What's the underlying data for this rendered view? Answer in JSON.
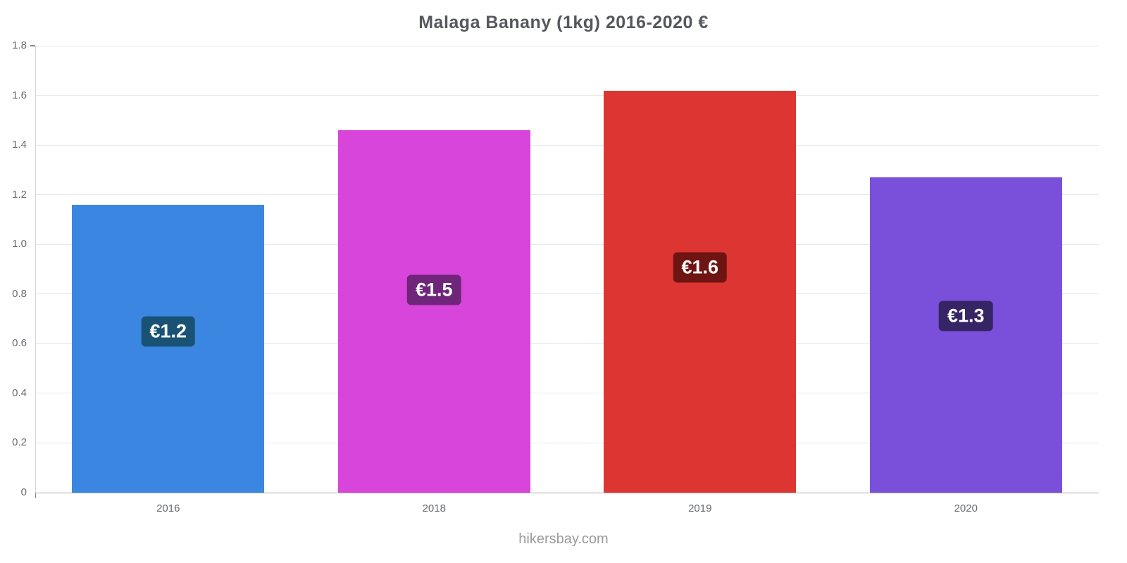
{
  "chart_data": {
    "type": "bar",
    "title": "Malaga Banany (1kg) 2016-2020 €",
    "categories": [
      "2016",
      "2018",
      "2019",
      "2020"
    ],
    "values": [
      1.16,
      1.46,
      1.62,
      1.27
    ],
    "bar_labels": [
      "€1.2",
      "€1.5",
      "€1.6",
      "€1.3"
    ],
    "bar_colors": [
      "#3a86e0",
      "#d845da",
      "#dd3531",
      "#7a4fd9"
    ],
    "label_chip_colors": [
      "#1a5276",
      "#6f2579",
      "#6e1412",
      "#372465"
    ],
    "xlabel": "",
    "ylabel": "",
    "ylim": [
      0,
      1.8
    ],
    "yticks": [
      0,
      0.2,
      0.4,
      0.6,
      0.8,
      1.0,
      1.2,
      1.4,
      1.6,
      1.8
    ],
    "grid": "horizontal",
    "legend": "none"
  },
  "footer": {
    "text": "hikersbay.com"
  }
}
